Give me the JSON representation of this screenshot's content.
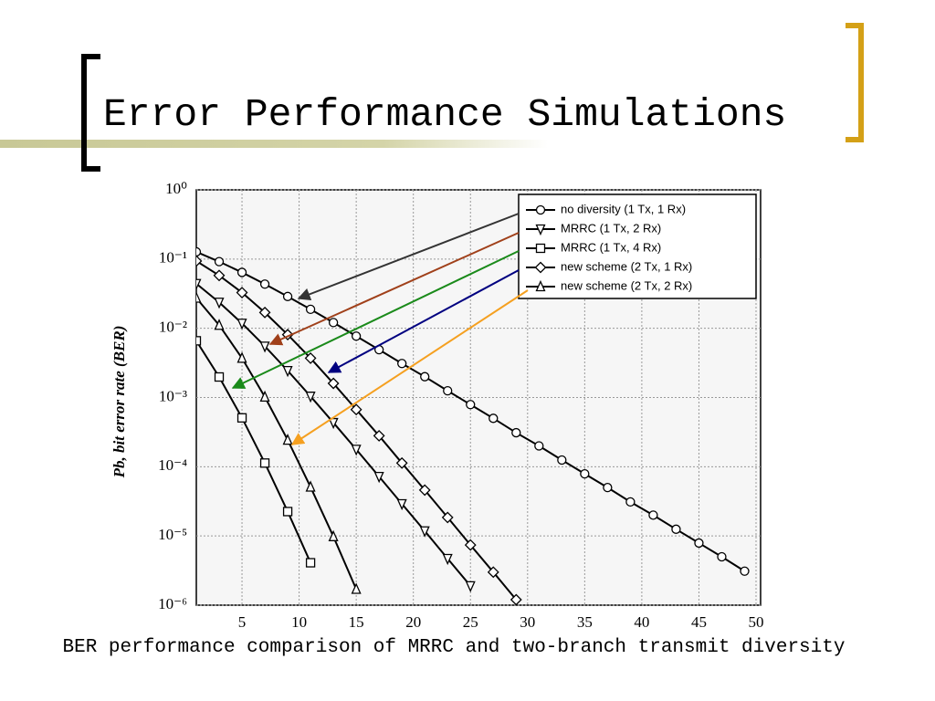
{
  "slide_title": "Error Performance Simulations",
  "caption": "BER performance comparison of MRRC and two-branch transmit diversity",
  "chart_data": {
    "type": "line",
    "ylabel": "Pb, bit error rate (BER)",
    "log_y": true,
    "grid": true,
    "legend": "upper right",
    "xlim": [
      1,
      50.4
    ],
    "xticks": [
      5,
      10,
      15,
      20,
      25,
      30,
      35,
      40,
      45,
      50
    ],
    "ylim": [
      1e-06,
      1
    ],
    "yticks": [
      {
        "value": 1,
        "label": "10⁰"
      },
      {
        "value": 0.1,
        "label": "10⁻¹"
      },
      {
        "value": 0.01,
        "label": "10⁻²"
      },
      {
        "value": 0.001,
        "label": "10⁻³"
      },
      {
        "value": 0.0001,
        "label": "10⁻⁴"
      },
      {
        "value": 1e-05,
        "label": "10⁻⁵"
      },
      {
        "value": 1e-06,
        "label": "10⁻⁶"
      }
    ],
    "series": [
      {
        "name": "no diversity (1 Tx, 1 Rx)",
        "color": "#000000",
        "marker": "circle",
        "x": [
          1,
          3,
          5,
          7,
          9,
          11,
          13,
          15,
          17,
          19,
          21,
          23,
          25,
          27,
          29,
          31,
          33,
          35,
          37,
          39,
          41,
          43,
          45,
          47,
          49
        ],
        "values": [
          0.127,
          0.0918,
          0.0642,
          0.0435,
          0.0288,
          0.0188,
          0.0121,
          0.0077,
          0.0049,
          0.0031,
          0.002,
          0.00125,
          0.00079,
          0.0005,
          0.00031,
          0.0002,
          0.000125,
          7.9e-05,
          5e-05,
          3.1e-05,
          2e-05,
          1.25e-05,
          7.9e-06,
          5e-06,
          3.1e-06
        ]
      },
      {
        "name": "MRRC (1 Tx, 2 Rx)",
        "color": "#000000",
        "marker": "triangle-down",
        "x": [
          1,
          3,
          5,
          7,
          9,
          11,
          13,
          15,
          17,
          19,
          21,
          23,
          25
        ],
        "values": [
          0.0442,
          0.0237,
          0.0118,
          0.0055,
          0.00244,
          0.00104,
          0.000433,
          0.000178,
          7.21e-05,
          2.91e-05,
          1.18e-05,
          4.7e-06,
          1.9e-06
        ]
      },
      {
        "name": "MRRC (1 Tx, 4 Rx)",
        "color": "#000000",
        "marker": "square",
        "x": [
          1,
          3,
          5,
          7,
          9,
          11
        ],
        "values": [
          0.0066,
          0.00198,
          0.000508,
          0.000113,
          2.25e-05,
          4.1e-06
        ]
      },
      {
        "name": "new scheme (2 Tx, 1 Rx)",
        "color": "#000000",
        "marker": "diamond",
        "x": [
          1,
          3,
          5,
          7,
          9,
          11,
          13,
          15,
          17,
          19,
          21,
          23,
          25,
          27,
          29
        ],
        "values": [
          0.0937,
          0.058,
          0.0328,
          0.0169,
          0.0081,
          0.0037,
          0.0016,
          0.00067,
          0.00028,
          0.000113,
          4.6e-05,
          1.85e-05,
          7.4e-06,
          3e-06,
          1.2e-06
        ]
      },
      {
        "name": "new scheme (2 Tx, 2 Rx)",
        "color": "#000000",
        "marker": "triangle-up",
        "x": [
          1,
          3,
          5,
          7,
          9,
          11,
          13,
          15
        ],
        "values": [
          0.0274,
          0.0111,
          0.0037,
          0.00102,
          0.000243,
          5.1e-05,
          9.8e-06,
          1.7e-06
        ]
      }
    ]
  }
}
